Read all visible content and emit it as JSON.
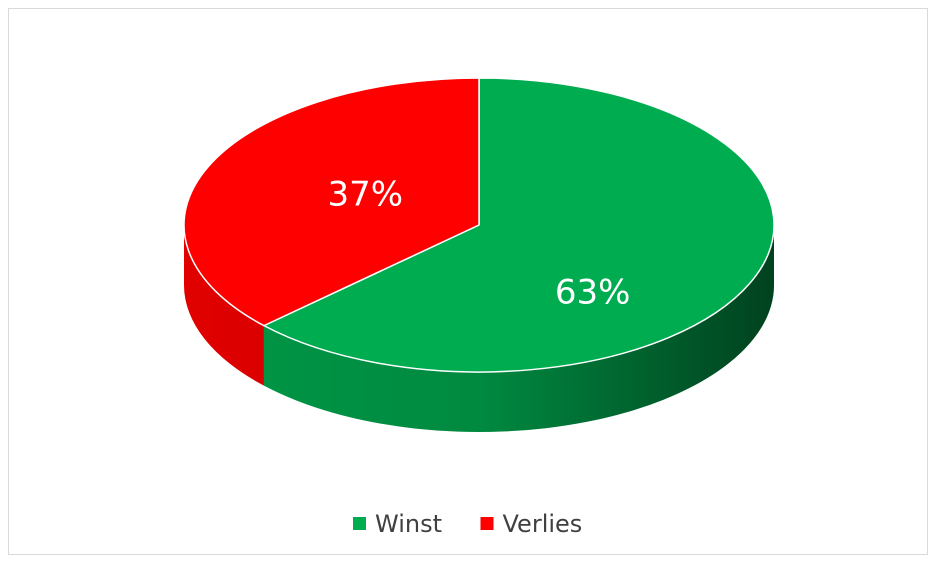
{
  "chart_data": {
    "type": "pie",
    "categories": [
      "Winst",
      "Verlies"
    ],
    "values": [
      63,
      37
    ],
    "value_labels": [
      "63%",
      "37%"
    ],
    "colors": [
      "#00ac50",
      "#ff0000"
    ],
    "legend": "bottom"
  }
}
